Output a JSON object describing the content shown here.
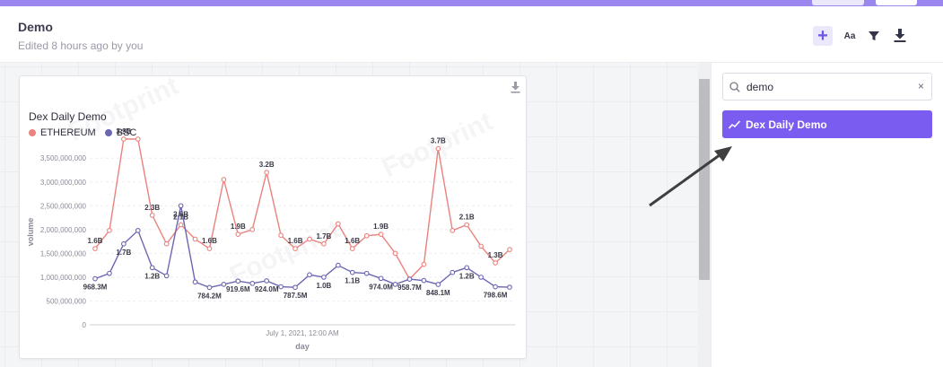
{
  "header": {
    "title": "Demo",
    "subtitle": "Edited 8 hours ago by you",
    "tools": {
      "plus": "+",
      "font": "Aa"
    }
  },
  "colors": {
    "ethereum": "#e9837f",
    "bsc": "#6a66b4",
    "accent": "#7b5cf0"
  },
  "card": {
    "title": "Dex Daily Demo",
    "watermark": "Footprint"
  },
  "chart_data": {
    "type": "line",
    "title": "Dex Daily Demo",
    "xlabel": "day",
    "ylabel": "volume",
    "x_tick_label": "July 1, 2021, 12:00 AM",
    "y_ticks": [
      "0",
      "500,000,000",
      "1,000,000,000",
      "1,500,000,000",
      "2,000,000,000",
      "2,500,000,000",
      "3,000,000,000",
      "3,500,000,000"
    ],
    "ylim": [
      0,
      3900000000
    ],
    "legend": "top-left",
    "grid": true,
    "series": [
      {
        "name": "ETHEREUM",
        "color": "#e9837f",
        "values": [
          1600000000.0,
          1980000000.0,
          3900000000.0,
          3900000000.0,
          2300000000.0,
          1700000000.0,
          2100000000.0,
          1800000000.0,
          1600000000.0,
          3050000000.0,
          1900000000.0,
          2000000000.0,
          3200000000.0,
          1880000000.0,
          1600000000.0,
          1800000000.0,
          1700000000.0,
          2120000000.0,
          1600000000.0,
          1870000000.0,
          1900000000.0,
          1500000000.0,
          960000000.0,
          1270000000.0,
          3700000000.0,
          1980000000.0,
          2100000000.0,
          1650000000.0,
          1300000000.0,
          1580000000.0
        ],
        "labels": [
          {
            "i": 0,
            "text": "1.6B"
          },
          {
            "i": 2,
            "text": "3.9B"
          },
          {
            "i": 4,
            "text": "2.3B"
          },
          {
            "i": 6,
            "text": "2.1B"
          },
          {
            "i": 8,
            "text": "1.6B"
          },
          {
            "i": 10,
            "text": "1.9B"
          },
          {
            "i": 12,
            "text": "3.2B"
          },
          {
            "i": 14,
            "text": "1.6B"
          },
          {
            "i": 16,
            "text": "1.7B"
          },
          {
            "i": 18,
            "text": "1.6B"
          },
          {
            "i": 20,
            "text": "1.9B"
          },
          {
            "i": 24,
            "text": "3.7B"
          },
          {
            "i": 26,
            "text": "2.1B"
          },
          {
            "i": 28,
            "text": "1.3B"
          }
        ]
      },
      {
        "name": "BSC",
        "color": "#6a66b4",
        "values": [
          968300000.0,
          1080000000.0,
          1700000000.0,
          1980000000.0,
          1200000000.0,
          1030000000.0,
          2500000000.0,
          900000000.0,
          784200000.0,
          850000000.0,
          919600000.0,
          870000000.0,
          924000000.0,
          800000000.0,
          787500000.0,
          1050000000.0,
          1000000000.0,
          1250000000.0,
          1100000000.0,
          1080000000.0,
          974000000.0,
          850000000.0,
          958700000.0,
          930000000.0,
          848100000.0,
          1100000000.0,
          1200000000.0,
          1000000000.0,
          798600000.0,
          790000000.0
        ],
        "labels": [
          {
            "i": 0,
            "text": "968.3M"
          },
          {
            "i": 2,
            "text": "1.7B"
          },
          {
            "i": 4,
            "text": "1.2B"
          },
          {
            "i": 6,
            "text": "2.5B"
          },
          {
            "i": 8,
            "text": "784.2M"
          },
          {
            "i": 10,
            "text": "919.6M"
          },
          {
            "i": 12,
            "text": "924.0M"
          },
          {
            "i": 14,
            "text": "787.5M"
          },
          {
            "i": 16,
            "text": "1.0B"
          },
          {
            "i": 18,
            "text": "1.1B"
          },
          {
            "i": 20,
            "text": "974.0M"
          },
          {
            "i": 22,
            "text": "958.7M"
          },
          {
            "i": 24,
            "text": "848.1M"
          },
          {
            "i": 26,
            "text": "1.2B"
          },
          {
            "i": 28,
            "text": "798.6M"
          }
        ]
      }
    ]
  },
  "sidebar": {
    "search_value": "demo",
    "clear_label": "×",
    "result_label": "Dex Daily Demo"
  }
}
